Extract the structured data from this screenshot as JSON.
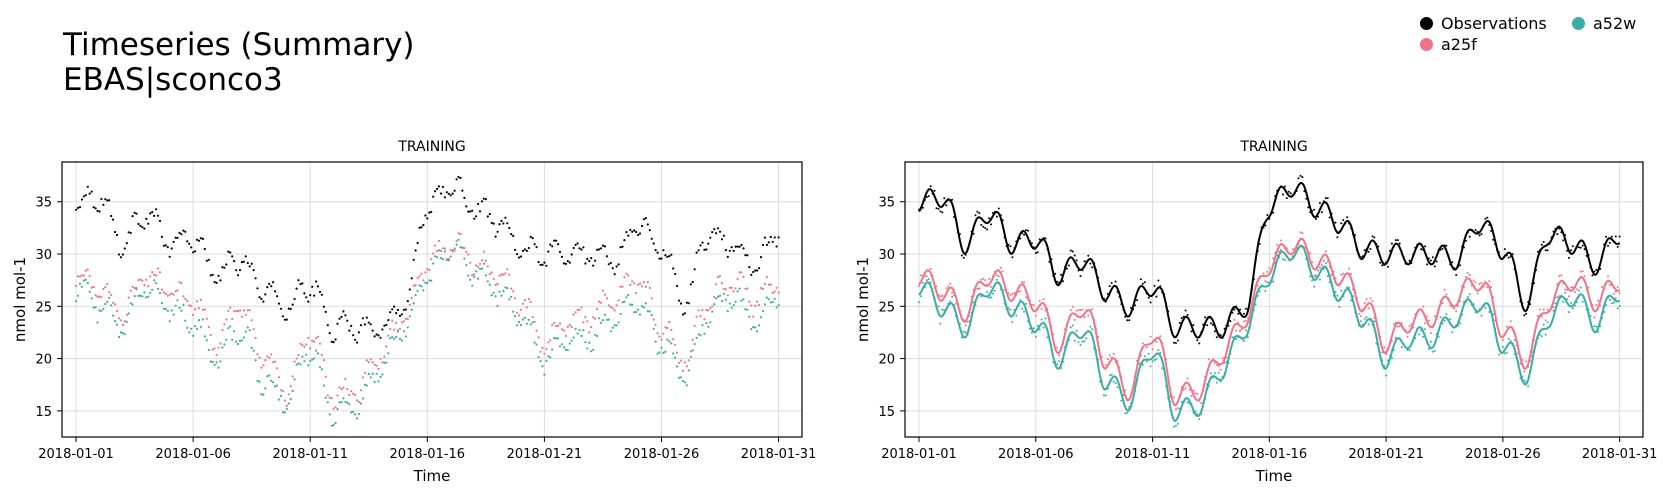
{
  "title": {
    "line1": "Timeseries (Summary)",
    "line2": "EBAS|sconco3"
  },
  "legend": [
    {
      "label": "Observations",
      "color": "#000000"
    },
    {
      "label": "a52w",
      "color": "#3aada5"
    },
    {
      "label": "a25f",
      "color": "#f07488"
    }
  ],
  "chart_data": [
    {
      "type": "scatter",
      "title": "TRAINING",
      "xlabel": "Time",
      "ylabel": "nmol mol-1",
      "xlim_days": [
        -0.6,
        31.0
      ],
      "ylim": [
        12.5,
        38.8
      ],
      "xticks": [
        "2018-01-01",
        "2018-01-06",
        "2018-01-11",
        "2018-01-16",
        "2018-01-21",
        "2018-01-26",
        "2018-01-31"
      ],
      "yticks": [
        15,
        20,
        25,
        30,
        35
      ],
      "grid": true,
      "series": [
        {
          "name": "Observations",
          "color": "#000000",
          "x": [
            "2018-01-01",
            "2018-01-02",
            "2018-01-03",
            "2018-01-04",
            "2018-01-05",
            "2018-01-06",
            "2018-01-07",
            "2018-01-08",
            "2018-01-09",
            "2018-01-10",
            "2018-01-11",
            "2018-01-12",
            "2018-01-13",
            "2018-01-14",
            "2018-01-15",
            "2018-01-16",
            "2018-01-17",
            "2018-01-18",
            "2018-01-19",
            "2018-01-20",
            "2018-01-21",
            "2018-01-22",
            "2018-01-23",
            "2018-01-24",
            "2018-01-25",
            "2018-01-26",
            "2018-01-27",
            "2018-01-28",
            "2018-01-29",
            "2018-01-30",
            "2018-01-31"
          ],
          "values": [
            35,
            35.5,
            31,
            34,
            31,
            31.5,
            28,
            29.5,
            26.5,
            25,
            27,
            23,
            23,
            23,
            25,
            34.5,
            36.5,
            34.5,
            33,
            30.5,
            30,
            30,
            30,
            29.5,
            33,
            30.5,
            25.5,
            32,
            31,
            29,
            32
          ]
        },
        {
          "name": "a52w",
          "color": "#3aada5",
          "x": [
            "2018-01-01",
            "2018-01-02",
            "2018-01-03",
            "2018-01-04",
            "2018-01-05",
            "2018-01-06",
            "2018-01-07",
            "2018-01-08",
            "2018-01-09",
            "2018-01-10",
            "2018-01-11",
            "2018-01-12",
            "2018-01-13",
            "2018-01-14",
            "2018-01-15",
            "2018-01-16",
            "2018-01-17",
            "2018-01-18",
            "2018-01-19",
            "2018-01-20",
            "2018-01-21",
            "2018-01-22",
            "2018-01-23",
            "2018-01-24",
            "2018-01-25",
            "2018-01-26",
            "2018-01-27",
            "2018-01-28",
            "2018-01-29",
            "2018-01-30",
            "2018-01-31"
          ],
          "values": [
            27,
            25,
            23,
            27,
            25,
            23.5,
            20,
            23,
            18,
            16,
            21,
            15,
            15.5,
            19,
            23,
            28,
            30.5,
            28.5,
            26.5,
            24,
            20,
            22,
            22,
            24,
            25.5,
            21.5,
            18.5,
            24,
            26,
            23.5,
            26.5
          ]
        },
        {
          "name": "a25f",
          "color": "#f07488",
          "x": [
            "2018-01-01",
            "2018-01-02",
            "2018-01-03",
            "2018-01-04",
            "2018-01-05",
            "2018-01-06",
            "2018-01-07",
            "2018-01-08",
            "2018-01-09",
            "2018-01-10",
            "2018-01-11",
            "2018-01-12",
            "2018-01-13",
            "2018-01-14",
            "2018-01-15",
            "2018-01-16",
            "2018-01-17",
            "2018-01-18",
            "2018-01-19",
            "2018-01-20",
            "2018-01-21",
            "2018-01-22",
            "2018-01-23",
            "2018-01-24",
            "2018-01-25",
            "2018-01-26",
            "2018-01-27",
            "2018-01-28",
            "2018-01-29",
            "2018-01-30",
            "2018-01-31"
          ],
          "values": [
            28,
            26.5,
            24.5,
            28,
            26.5,
            25.5,
            21.5,
            25,
            20,
            17,
            22.5,
            16.5,
            17,
            20.5,
            24,
            29,
            31,
            29.5,
            28,
            25.5,
            21.5,
            23.5,
            24,
            26,
            27.5,
            23,
            20,
            25.5,
            27.5,
            25.5,
            27.5
          ]
        }
      ]
    },
    {
      "type": "line",
      "title": "TRAINING",
      "xlabel": "Time",
      "ylabel": "nmol mol-1",
      "xlim_days": [
        -0.6,
        31.0
      ],
      "ylim": [
        12.5,
        38.8
      ],
      "xticks": [
        "2018-01-01",
        "2018-01-06",
        "2018-01-11",
        "2018-01-16",
        "2018-01-21",
        "2018-01-26",
        "2018-01-31"
      ],
      "yticks": [
        15,
        20,
        25,
        30,
        35
      ],
      "grid": true,
      "series": [
        {
          "name": "Observations",
          "color": "#000000",
          "x": [
            "2018-01-01",
            "2018-01-02",
            "2018-01-03",
            "2018-01-04",
            "2018-01-05",
            "2018-01-06",
            "2018-01-07",
            "2018-01-08",
            "2018-01-09",
            "2018-01-10",
            "2018-01-11",
            "2018-01-12",
            "2018-01-13",
            "2018-01-14",
            "2018-01-15",
            "2018-01-16",
            "2018-01-17",
            "2018-01-18",
            "2018-01-19",
            "2018-01-20",
            "2018-01-21",
            "2018-01-22",
            "2018-01-23",
            "2018-01-24",
            "2018-01-25",
            "2018-01-26",
            "2018-01-27",
            "2018-01-28",
            "2018-01-29",
            "2018-01-30",
            "2018-01-31"
          ],
          "values": [
            35,
            35.5,
            31,
            34,
            31,
            31.5,
            28,
            29.5,
            26.5,
            25,
            27,
            23,
            23,
            23,
            25,
            34.5,
            36.5,
            34.5,
            33,
            30.5,
            30,
            30,
            30,
            29.5,
            33,
            30.5,
            25.5,
            32,
            31,
            29,
            32
          ]
        },
        {
          "name": "a52w",
          "color": "#3aada5",
          "x": [
            "2018-01-01",
            "2018-01-02",
            "2018-01-03",
            "2018-01-04",
            "2018-01-05",
            "2018-01-06",
            "2018-01-07",
            "2018-01-08",
            "2018-01-09",
            "2018-01-10",
            "2018-01-11",
            "2018-01-12",
            "2018-01-13",
            "2018-01-14",
            "2018-01-15",
            "2018-01-16",
            "2018-01-17",
            "2018-01-18",
            "2018-01-19",
            "2018-01-20",
            "2018-01-21",
            "2018-01-22",
            "2018-01-23",
            "2018-01-24",
            "2018-01-25",
            "2018-01-26",
            "2018-01-27",
            "2018-01-28",
            "2018-01-29",
            "2018-01-30",
            "2018-01-31"
          ],
          "values": [
            27,
            25,
            23,
            27,
            25,
            23.5,
            20,
            23,
            18,
            16,
            21,
            15,
            15.5,
            19,
            23,
            28,
            30.5,
            28.5,
            26.5,
            24,
            20,
            22,
            22,
            24,
            25.5,
            21.5,
            18.5,
            24,
            26,
            23.5,
            26.5
          ]
        },
        {
          "name": "a25f",
          "color": "#f07488",
          "x": [
            "2018-01-01",
            "2018-01-02",
            "2018-01-03",
            "2018-01-04",
            "2018-01-05",
            "2018-01-06",
            "2018-01-07",
            "2018-01-08",
            "2018-01-09",
            "2018-01-10",
            "2018-01-11",
            "2018-01-12",
            "2018-01-13",
            "2018-01-14",
            "2018-01-15",
            "2018-01-16",
            "2018-01-17",
            "2018-01-18",
            "2018-01-19",
            "2018-01-20",
            "2018-01-21",
            "2018-01-22",
            "2018-01-23",
            "2018-01-24",
            "2018-01-25",
            "2018-01-26",
            "2018-01-27",
            "2018-01-28",
            "2018-01-29",
            "2018-01-30",
            "2018-01-31"
          ],
          "values": [
            28,
            26.5,
            24.5,
            28,
            26.5,
            25.5,
            21.5,
            25,
            20,
            17,
            22.5,
            16.5,
            17,
            20.5,
            24,
            29,
            31,
            29.5,
            28,
            25.5,
            21.5,
            23.5,
            24,
            26,
            27.5,
            23,
            20,
            25.5,
            27.5,
            25.5,
            27.5
          ]
        }
      ]
    }
  ]
}
